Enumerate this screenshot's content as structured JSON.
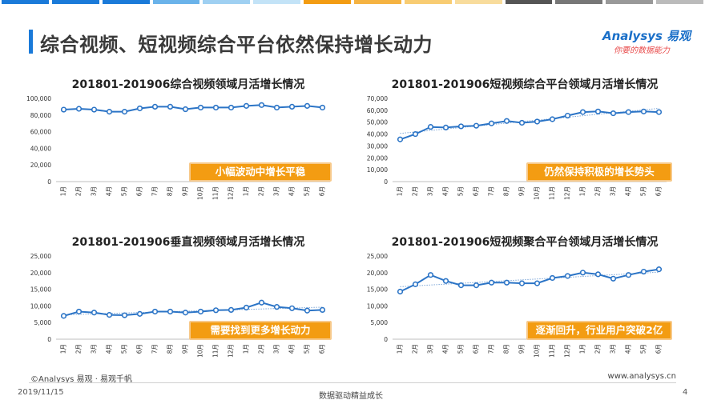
{
  "top_bar_colors": [
    "#1a7ad9",
    "#1a7ad9",
    "#1a7ad9",
    "#6ab3ea",
    "#9fd0f2",
    "#c3e3f7",
    "#f39c12",
    "#f5b342",
    "#f8cc72",
    "#f8dc9c",
    "#555555",
    "#777777",
    "#999999",
    "#bbbbbb"
  ],
  "page_title": "综合视频、短视频综合平台依然保持增长动力",
  "logo": {
    "main": "Analysys 易观",
    "sub": "你要的数据能力"
  },
  "footer": {
    "source": "©Analysys 易观 · 易观千帆",
    "website": "www.analysys.cn",
    "date": "2019/11/15",
    "slogan": "数据驱动精益成长",
    "page": "4"
  },
  "colors": {
    "line": "#2b74c6",
    "marker_fill": "#ffffff",
    "note_bg": "#f39c12",
    "accent": "#1a7ad9"
  },
  "notes": [
    "小幅波动中增长平稳",
    "仍然保持积极的增长势头",
    "需要找到更多增长动力",
    "逐渐回升，行业用户突破2亿"
  ],
  "chart_data": [
    {
      "type": "line",
      "title": "201801-201906综合视频领域月活增长情况",
      "categories": [
        "1月",
        "2月",
        "3月",
        "4月",
        "5月",
        "6月",
        "7月",
        "8月",
        "9月",
        "10月",
        "11月",
        "12月",
        "1月",
        "2月",
        "3月",
        "4月",
        "5月",
        "6月"
      ],
      "values": [
        86500,
        87500,
        86500,
        84000,
        84000,
        88000,
        90000,
        90000,
        87000,
        89000,
        89000,
        89000,
        91000,
        92000,
        89000,
        90000,
        91000,
        89000
      ],
      "ylim": [
        0,
        100000
      ],
      "yticks": [
        "0",
        "20,000",
        "40,000",
        "60,000",
        "80,000",
        "100,000"
      ],
      "ytick_values": [
        0,
        20000,
        40000,
        60000,
        80000,
        100000
      ],
      "grid": false,
      "trendline": false
    },
    {
      "type": "line",
      "title": "201801-201906短视频综合平台领域月活增长情况",
      "categories": [
        "1月",
        "2月",
        "3月",
        "4月",
        "5月",
        "6月",
        "7月",
        "8月",
        "9月",
        "10月",
        "11月",
        "12月",
        "1月",
        "2月",
        "3月",
        "4月",
        "5月",
        "6月"
      ],
      "values": [
        35500,
        40000,
        46000,
        45500,
        46500,
        47000,
        49000,
        51000,
        49500,
        50500,
        52500,
        55500,
        58500,
        59000,
        57500,
        58500,
        59000,
        58500
      ],
      "ylim": [
        0,
        70000
      ],
      "yticks": [
        "0",
        "10,000",
        "20,000",
        "30,000",
        "40,000",
        "50,000",
        "60,000",
        "70,000"
      ],
      "ytick_values": [
        0,
        10000,
        20000,
        30000,
        40000,
        50000,
        60000,
        70000
      ],
      "grid": false,
      "trendline": true
    },
    {
      "type": "line",
      "title": "201801-201906垂直视频领域月活增长情况",
      "categories": [
        "1月",
        "2月",
        "3月",
        "4月",
        "5月",
        "6月",
        "7月",
        "8月",
        "9月",
        "10月",
        "11月",
        "12月",
        "1月",
        "2月",
        "3月",
        "4月",
        "5月",
        "6月"
      ],
      "values": [
        7000,
        8300,
        8000,
        7300,
        7200,
        7600,
        8300,
        8300,
        8000,
        8300,
        8700,
        8800,
        9500,
        11000,
        9700,
        9300,
        8600,
        8800
      ],
      "ylim": [
        0,
        25000
      ],
      "yticks": [
        "0",
        "5,000",
        "10,000",
        "15,000",
        "20,000",
        "25,000"
      ],
      "ytick_values": [
        0,
        5000,
        10000,
        15000,
        20000,
        25000
      ],
      "grid": false,
      "trendline": true
    },
    {
      "type": "line",
      "title": "201801-201906短视频聚合平台领域月活增长情况",
      "categories": [
        "1月",
        "2月",
        "3月",
        "4月",
        "5月",
        "6月",
        "7月",
        "8月",
        "9月",
        "10月",
        "11月",
        "12月",
        "1月",
        "2月",
        "3月",
        "4月",
        "5月",
        "6月"
      ],
      "values": [
        14300,
        16500,
        19300,
        17500,
        16200,
        16200,
        17000,
        17000,
        16800,
        16800,
        18400,
        19000,
        20000,
        19500,
        18200,
        19300,
        20300,
        21000
      ],
      "ylim": [
        0,
        25000
      ],
      "yticks": [
        "0",
        "5,000",
        "10,000",
        "15,000",
        "20,000",
        "25,000"
      ],
      "ytick_values": [
        0,
        5000,
        10000,
        15000,
        20000,
        25000
      ],
      "grid": false,
      "trendline": true
    }
  ]
}
